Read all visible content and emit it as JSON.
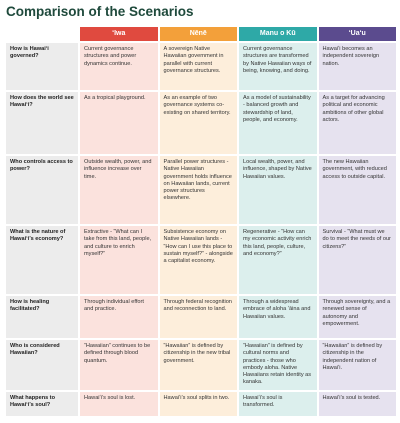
{
  "title": "Comparison of the Scenarios",
  "columns": [
    "ʻIwa",
    "Nēnē",
    "Manu o Kū",
    "ʻUaʻu"
  ],
  "rows": [
    {
      "question": "How is Hawaiʻi governed?",
      "answers": [
        "Current governance structures and power dynamics continue.",
        "A sovereign Native Hawaiian government in parallel with current governance structures.",
        "Current governance structures are transformed by Native Hawaiian ways of being, knowing, and doing.",
        "Hawaiʻi becomes an independent sovereign nation."
      ]
    },
    {
      "question": "How does the world see Hawaiʻi?",
      "answers": [
        "As a tropical playground.",
        "As an example of two governance systems co-existing on shared territory.",
        "As a model of sustainability - balanced growth and stewardship of land, people, and economy.",
        "As a target for advancing political and economic ambitions of other global actors."
      ]
    },
    {
      "question": "Who controls access to power?",
      "answers": [
        "Outside wealth, power, and influence increase over time.",
        "Parallel power structures - Native Hawaiian government holds influence on Hawaiian lands, current power structures elsewhere.",
        "Local wealth, power, and influence, shaped by Native Hawaiian values.",
        "The new Hawaiian government, with reduced access to outside capital."
      ]
    },
    {
      "question": "What is the nature of Hawaiʻi’s economy?",
      "answers": [
        "Extractive - “What can I take from this land, people, and culture to enrich myself?”",
        "Subsistence economy on Native Hawaiian lands - “How can I use this place to sustain myself?” - alongside a capitalist economy.",
        "Regenerative - “How can my economic activity enrich this land, people, culture, and economy?”",
        "Survival - “What must we do to meet the needs of our citizens?”"
      ]
    },
    {
      "question": "How is healing facilitated?",
      "answers": [
        "Through individual effort and practice.",
        "Through federal recognition and reconnection to land.",
        "Through a widespread embrace of aloha ʻāina and Hawaiian values.",
        "Through sovereignty, and a renewed sense of autonomy and empowerment."
      ]
    },
    {
      "question": "Who is considered Hawaiian?",
      "answers": [
        "“Hawaiian” continues to be defined through blood quantum.",
        "“Hawaiian” is defined by citizenship in the new tribal government.",
        "“Hawaiian” is defined by cultural norms and practices - those who embody aloha. Native Hawaiians retain identity as kanaka.",
        "“Hawaiian” is defined by citizenship in the independent nation of Hawaiʻi."
      ]
    },
    {
      "question": "What happens to Hawaiʻi’s soul?",
      "answers": [
        "Hawaiʻi’s soul is lost.",
        "Hawaiʻi’s soul splits in two.",
        "Hawaiʻi’s soul is transformed.",
        "Hawaiʻi’s soul is tested."
      ]
    }
  ]
}
